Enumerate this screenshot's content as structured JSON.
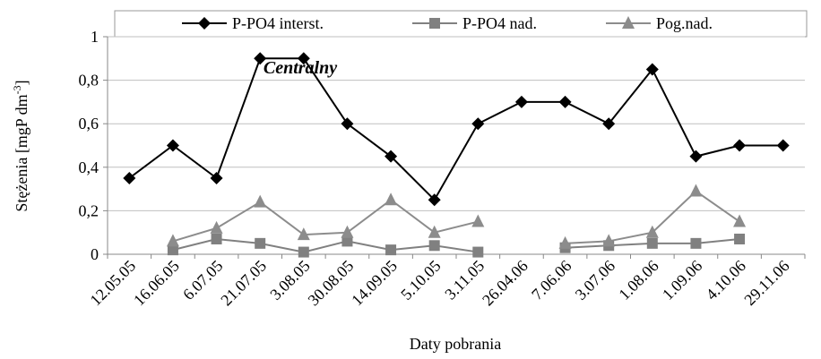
{
  "chart_data": {
    "type": "line",
    "annotation": "Centralny",
    "ylabel": "Stężenia [mgP dm",
    "ylabel_sup": "-3",
    "ylabel_end": "]",
    "xlabel": "Daty pobrania",
    "categories": [
      "12.05.05",
      "16.06.05",
      "6.07.05",
      "21.07.05",
      "3.08.05",
      "30.08.05",
      "14.09.05",
      "5.10.05",
      "3.11.05",
      "26.04.06",
      "7.06.06",
      "3.07.06",
      "1.08.06",
      "1.09.06",
      "4.10.06",
      "29.11.06"
    ],
    "series": [
      {
        "name": "P-PO4 interst.",
        "color": "#000000",
        "marker": "diamond",
        "values": [
          0.35,
          0.5,
          0.35,
          0.9,
          0.9,
          0.6,
          0.45,
          0.25,
          0.6,
          0.7,
          0.7,
          0.6,
          0.85,
          0.45,
          0.5,
          0.5
        ]
      },
      {
        "name": "P-PO4 nad.",
        "color": "#808080",
        "marker": "square",
        "values": [
          null,
          0.02,
          0.07,
          0.05,
          0.01,
          0.06,
          0.02,
          0.04,
          0.01,
          null,
          0.03,
          0.04,
          0.05,
          0.05,
          0.07,
          null
        ]
      },
      {
        "name": "Pog.nad.",
        "color": "#8c8c8c",
        "marker": "triangle",
        "values": [
          null,
          0.06,
          0.12,
          0.24,
          0.09,
          0.1,
          0.25,
          0.1,
          0.15,
          null,
          0.05,
          0.06,
          0.1,
          0.29,
          0.15,
          null
        ]
      }
    ],
    "ylim": [
      0,
      1
    ],
    "yticks": [
      0,
      {
        "value": 0.2,
        "label": "0,2"
      },
      {
        "value": 0.4,
        "label": "0,4"
      },
      {
        "value": 0.6,
        "label": "0,6"
      },
      {
        "value": 0.8,
        "label": "0,8"
      },
      1
    ],
    "grid": true,
    "legend": "top"
  }
}
